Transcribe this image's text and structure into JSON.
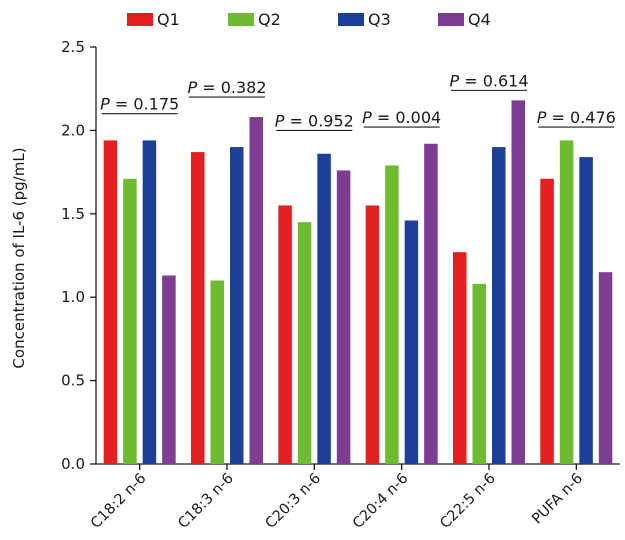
{
  "chart_data": {
    "type": "bar",
    "title": "",
    "xlabel": "",
    "ylabel": "Concentration of IL-6 (pg/mL)",
    "ylim": [
      0,
      2.5
    ],
    "yticks": [
      "0.0",
      "0.5",
      "1.0",
      "1.5",
      "2.0",
      "2.5"
    ],
    "legend_position": "top",
    "categories": [
      "C18:2 n-6",
      "C18:3 n-6",
      "C20:3 n-6",
      "C20:4 n-6",
      "C22:5 n-6",
      "PUFA n-6"
    ],
    "series": [
      {
        "name": "Q1",
        "color": "#e41f1f",
        "values": [
          1.94,
          1.87,
          1.55,
          1.55,
          1.27,
          1.71
        ]
      },
      {
        "name": "Q2",
        "color": "#6dbb2e",
        "values": [
          1.71,
          1.1,
          1.45,
          1.79,
          1.08,
          1.94
        ]
      },
      {
        "name": "Q3",
        "color": "#1c3f98",
        "values": [
          1.94,
          1.9,
          1.86,
          1.46,
          1.9,
          1.84
        ]
      },
      {
        "name": "Q4",
        "color": "#7d3d93",
        "values": [
          1.13,
          2.08,
          1.76,
          1.92,
          2.18,
          1.15
        ]
      }
    ],
    "annotations": [
      {
        "category": "C18:2 n-6",
        "symbol": "P",
        "text": " = 0.175",
        "y": 2.1
      },
      {
        "category": "C18:3 n-6",
        "symbol": "P",
        "text": " = 0.382",
        "y": 2.2
      },
      {
        "category": "C20:3 n-6",
        "symbol": "P",
        "text": " = 0.952",
        "y": 2.0
      },
      {
        "category": "C20:4 n-6",
        "symbol": "P",
        "text": " = 0.004",
        "y": 2.02
      },
      {
        "category": "C22:5 n-6",
        "symbol": "P",
        "text": " = 0.614",
        "y": 2.24
      },
      {
        "category": "PUFA n-6",
        "symbol": "P",
        "text": " = 0.476",
        "y": 2.02
      }
    ]
  }
}
